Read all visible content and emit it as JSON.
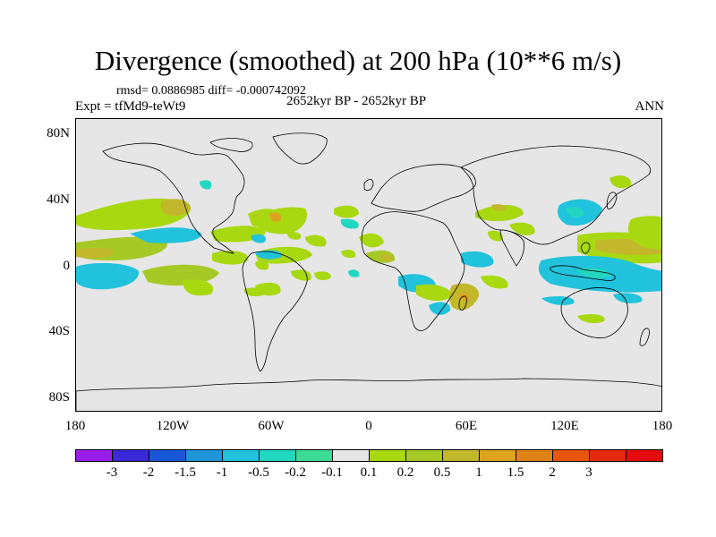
{
  "title": "Divergence (smoothed) at 200 hPa (10**6 m/s)",
  "stats": "rmsd= 0.0886985 diff= -0.000742092",
  "expt": "Expt = tfMd9-teWt9",
  "period": "2652kyr BP - 2652kyr BP",
  "season": "ANN",
  "lat_labels": [
    "80N",
    "40N",
    "0",
    "40S",
    "80S"
  ],
  "lon_labels": [
    "180",
    "120W",
    "60W",
    "0",
    "60E",
    "120E",
    "180"
  ],
  "colorbar": {
    "colors": [
      "#9b1de9",
      "#3a27d7",
      "#1857d8",
      "#1e96d8",
      "#21c3dc",
      "#21d7c0",
      "#3ddc96",
      "#e6e6e6",
      "#a8d810",
      "#a6c926",
      "#c3b82b",
      "#dea420",
      "#e08317",
      "#e8560b",
      "#e52a0b",
      "#e60c0c"
    ],
    "labels": [
      "-3",
      "-2",
      "-1.5",
      "-1",
      "-0.5",
      "-0.2",
      "-0.1",
      "0.1",
      "0.2",
      "0.5",
      "1",
      "1.5",
      "2",
      "3"
    ]
  },
  "map_colors": {
    "ocean_bg": "#e6e6e6",
    "green": "#a8d810",
    "yellow_green": "#a6c926",
    "olive": "#c3b82b",
    "orange": "#dea420",
    "teal": "#21d7c0",
    "cyan": "#21c3dc",
    "light_green": "#3ddc96",
    "coast": "#000000"
  }
}
